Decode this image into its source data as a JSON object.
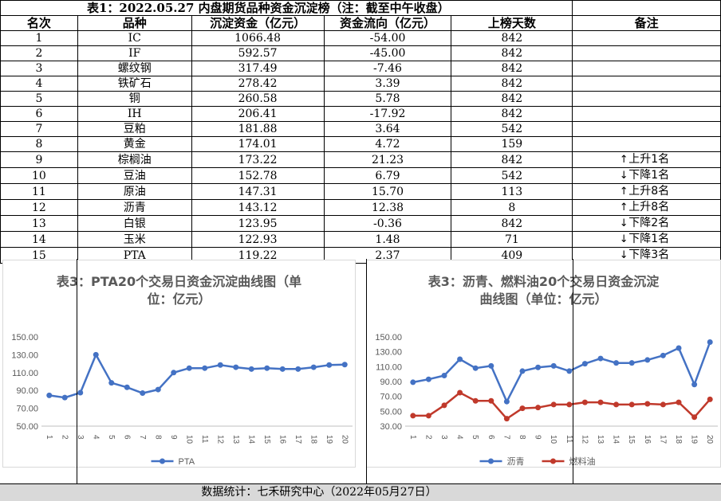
{
  "title": "表1：2022.05.27 内盘期货品种资金沉淀榜（注：截至中午收盘）",
  "headers": [
    "名次",
    "品种",
    "沉淀资金（亿元）",
    "资金流向（亿元）",
    "上榜天数",
    "备注"
  ],
  "rows": [
    {
      "rank": "1",
      "name": "IC",
      "fund": "1066.48",
      "flow": "-54.00",
      "days": "842",
      "note": "",
      "dir": ""
    },
    {
      "rank": "2",
      "name": "IF",
      "fund": "592.57",
      "flow": "-45.00",
      "days": "842",
      "note": "",
      "dir": ""
    },
    {
      "rank": "3",
      "name": "螺纹钢",
      "fund": "317.49",
      "flow": "-7.46",
      "days": "842",
      "note": "",
      "dir": ""
    },
    {
      "rank": "4",
      "name": "铁矿石",
      "fund": "278.42",
      "flow": "3.39",
      "days": "842",
      "note": "",
      "dir": ""
    },
    {
      "rank": "5",
      "name": "铜",
      "fund": "260.58",
      "flow": "5.78",
      "days": "842",
      "note": "",
      "dir": ""
    },
    {
      "rank": "6",
      "name": "IH",
      "fund": "206.41",
      "flow": "-17.92",
      "days": "842",
      "note": "",
      "dir": ""
    },
    {
      "rank": "7",
      "name": "豆粕",
      "fund": "181.88",
      "flow": "3.64",
      "days": "542",
      "note": "",
      "dir": ""
    },
    {
      "rank": "8",
      "name": "黄金",
      "fund": "174.01",
      "flow": "4.72",
      "days": "159",
      "note": "",
      "dir": ""
    },
    {
      "rank": "9",
      "name": "棕榈油",
      "fund": "173.22",
      "flow": "21.23",
      "days": "842",
      "note": "上升1名",
      "dir": "up"
    },
    {
      "rank": "10",
      "name": "豆油",
      "fund": "152.78",
      "flow": "6.79",
      "days": "542",
      "note": "下降1名",
      "dir": "down"
    },
    {
      "rank": "11",
      "name": "原油",
      "fund": "147.31",
      "flow": "15.70",
      "days": "113",
      "note": "上升8名",
      "dir": "up"
    },
    {
      "rank": "12",
      "name": "沥青",
      "fund": "143.12",
      "flow": "12.38",
      "days": "8",
      "note": "上升8名",
      "dir": "up"
    },
    {
      "rank": "13",
      "name": "白银",
      "fund": "123.95",
      "flow": "-0.36",
      "days": "842",
      "note": "下降2名",
      "dir": "down"
    },
    {
      "rank": "14",
      "name": "玉米",
      "fund": "122.93",
      "flow": "1.48",
      "days": "71",
      "note": "下降1名",
      "dir": "down"
    },
    {
      "rank": "15",
      "name": "PTA",
      "fund": "119.22",
      "flow": "2.37",
      "days": "409",
      "note": "下降3名",
      "dir": "down"
    }
  ],
  "footer": "数据统计：七禾研究中心（2022年05月27日）",
  "colors": {
    "blue": "#4472c4",
    "red": "#c0392b",
    "axis_text": "#595959",
    "grid": "#d9d9d9"
  },
  "chart_data": [
    {
      "type": "line",
      "title": "表3：PTA20个交易日资金沉淀曲线图（单位：亿元）",
      "title_lines": [
        "表3：PTA20个交易日资金沉淀曲线图（单",
        "位：亿元）"
      ],
      "x": [
        "1",
        "2",
        "3",
        "4",
        "5",
        "6",
        "7",
        "8",
        "9",
        "10",
        "11",
        "12",
        "13",
        "14",
        "15",
        "16",
        "17",
        "18",
        "19",
        "20"
      ],
      "yticks": [
        "50.00",
        "70.00",
        "90.00",
        "110.00",
        "130.00",
        "150.00"
      ],
      "ylim": [
        50,
        150
      ],
      "series": [
        {
          "name": "PTA",
          "color": "#4472c4",
          "values": [
            84.5,
            82,
            87.5,
            130,
            98.5,
            93.5,
            87,
            91,
            110,
            115,
            115,
            118.5,
            116,
            114,
            115,
            114,
            114,
            116,
            118.5,
            119
          ]
        }
      ],
      "legend": "bottom"
    },
    {
      "type": "line",
      "title": "表3：沥青、燃料油20个交易日资金沉淀曲线图（单位：亿元）",
      "title_lines": [
        "表3：沥青、燃料油20个交易日资金沉淀",
        "曲线图（单位：亿元）"
      ],
      "x": [
        "1",
        "2",
        "3",
        "4",
        "5",
        "6",
        "7",
        "8",
        "9",
        "10",
        "11",
        "12",
        "13",
        "14",
        "15",
        "16",
        "17",
        "18",
        "19",
        "20"
      ],
      "yticks": [
        "30.00",
        "50.00",
        "70.00",
        "90.00",
        "110.00",
        "130.00",
        "150.00"
      ],
      "ylim": [
        30,
        150
      ],
      "series": [
        {
          "name": "沥青",
          "color": "#4472c4",
          "values": [
            89,
            93,
            98,
            120,
            108,
            111,
            63,
            104,
            109,
            111,
            104,
            114,
            121,
            115,
            115,
            119,
            125,
            135,
            86,
            143
          ]
        },
        {
          "name": "燃料油",
          "color": "#c0392b",
          "values": [
            44,
            44,
            58,
            75,
            64,
            64,
            40,
            54,
            55,
            59,
            59,
            62,
            62,
            59,
            59,
            60,
            59,
            62,
            42,
            66
          ]
        }
      ],
      "legend": "bottom"
    }
  ]
}
